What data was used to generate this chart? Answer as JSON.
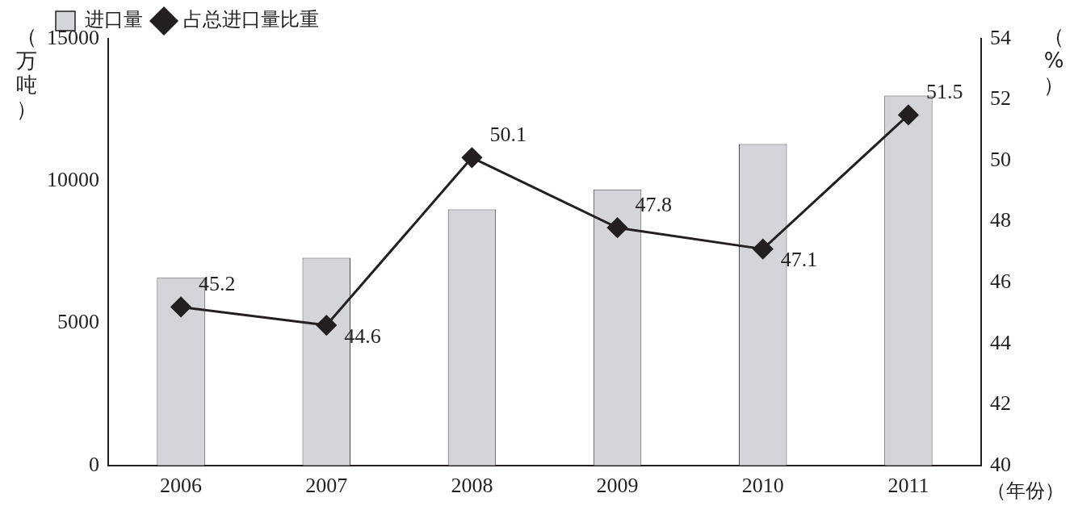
{
  "chart_data": {
    "type": "bar",
    "xlabel": "（年份）",
    "ylabel": "（万吨）",
    "y2label": "（%）",
    "categories": [
      "2006",
      "2007",
      "2008",
      "2009",
      "2010",
      "2011"
    ],
    "series": [
      {
        "name": "进口量",
        "color": "#d3d5d8",
        "values": [
          6600,
          7300,
          9000,
          9700,
          11300,
          13000
        ]
      },
      {
        "name": "占总进口量比重",
        "type": "line",
        "axis": "y2",
        "color": "#231f20",
        "marker": "diamond",
        "values": [
          45.2,
          44.6,
          50.1,
          47.8,
          47.1,
          51.5
        ],
        "value_labels": [
          "45.2",
          "44.6",
          "50.1",
          "47.8",
          "47.1",
          "51.5"
        ]
      }
    ],
    "ylim": [
      0,
      15000
    ],
    "yticks": [
      0,
      5000,
      10000,
      15000
    ],
    "y2lim": [
      40,
      54
    ],
    "y2ticks": [
      40,
      42,
      44,
      46,
      48,
      50,
      52,
      54
    ],
    "legend": "top left",
    "grid": false
  }
}
